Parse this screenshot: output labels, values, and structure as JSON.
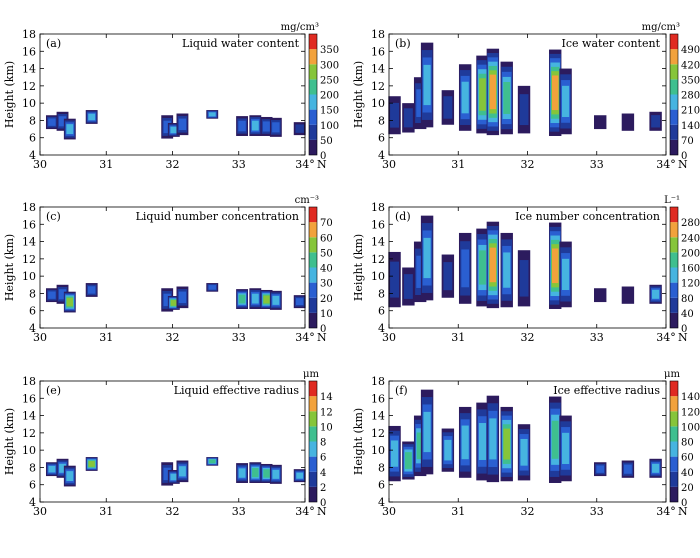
{
  "figure": {
    "x_unit_suffix": "N",
    "xlabel_short": "N",
    "degree_symbol": "°"
  },
  "chart_data": [
    {
      "type": "heatmap",
      "panel_label": "(a)",
      "title": "Liquid water content",
      "ylabel": "Height (km)",
      "xlabel": "°N",
      "x_ticks": [
        30,
        31,
        32,
        33,
        34
      ],
      "y_ticks": [
        4,
        6,
        8,
        10,
        12,
        14,
        16,
        18
      ],
      "xlim": [
        30,
        34
      ],
      "ylim": [
        4,
        18
      ],
      "colorbar": {
        "unit": "mg/cm³",
        "ticks": [
          0,
          50,
          100,
          150,
          200,
          250,
          300,
          350
        ],
        "max": 400
      },
      "cells": [
        {
          "x": 30.18,
          "ymin": 7.0,
          "ymax": 8.6,
          "v": 0.35
        },
        {
          "x": 30.34,
          "ymin": 6.8,
          "ymax": 9.0,
          "v": 0.4
        },
        {
          "x": 30.45,
          "ymin": 5.8,
          "ymax": 8.2,
          "v": 0.45
        },
        {
          "x": 30.78,
          "ymin": 7.6,
          "ymax": 9.2,
          "v": 0.5
        },
        {
          "x": 31.92,
          "ymin": 5.9,
          "ymax": 8.6,
          "v": 0.4
        },
        {
          "x": 32.02,
          "ymin": 6.1,
          "ymax": 7.7,
          "v": 0.55
        },
        {
          "x": 32.15,
          "ymin": 6.3,
          "ymax": 8.8,
          "v": 0.35
        },
        {
          "x": 32.6,
          "ymin": 8.2,
          "ymax": 9.2,
          "v": 0.45
        },
        {
          "x": 33.05,
          "ymin": 6.2,
          "ymax": 8.5,
          "v": 0.4
        },
        {
          "x": 33.25,
          "ymin": 6.2,
          "ymax": 8.6,
          "v": 0.45
        },
        {
          "x": 33.42,
          "ymin": 6.2,
          "ymax": 8.4,
          "v": 0.4
        },
        {
          "x": 33.56,
          "ymin": 6.1,
          "ymax": 8.3,
          "v": 0.35
        },
        {
          "x": 33.92,
          "ymin": 6.3,
          "ymax": 7.8,
          "v": 0.3
        }
      ]
    },
    {
      "type": "heatmap",
      "panel_label": "(b)",
      "title": "Ice water content",
      "ylabel": "Height (km)",
      "xlabel": "°N",
      "x_ticks": [
        30,
        31,
        32,
        33,
        34
      ],
      "y_ticks": [
        4,
        6,
        8,
        10,
        12,
        14,
        16,
        18
      ],
      "xlim": [
        30,
        34
      ],
      "ylim": [
        4,
        18
      ],
      "colorbar": {
        "unit": "mg/cm³",
        "ticks": [
          0,
          70,
          140,
          210,
          280,
          350,
          420,
          490
        ],
        "max": 560
      },
      "cells": [
        {
          "x": 30.08,
          "ymin": 6.4,
          "ymax": 10.8,
          "v": 0.2
        },
        {
          "x": 30.28,
          "ymin": 6.6,
          "ymax": 10.0,
          "v": 0.25
        },
        {
          "x": 30.45,
          "ymin": 7.0,
          "ymax": 13.0,
          "v": 0.35
        },
        {
          "x": 30.55,
          "ymin": 7.2,
          "ymax": 17.0,
          "v": 0.45
        },
        {
          "x": 30.85,
          "ymin": 7.5,
          "ymax": 11.5,
          "v": 0.3
        },
        {
          "x": 31.1,
          "ymin": 6.8,
          "ymax": 14.5,
          "v": 0.45
        },
        {
          "x": 31.35,
          "ymin": 6.5,
          "ymax": 15.5,
          "v": 0.75
        },
        {
          "x": 31.5,
          "ymin": 6.3,
          "ymax": 16.3,
          "v": 0.9
        },
        {
          "x": 31.7,
          "ymin": 6.4,
          "ymax": 14.8,
          "v": 0.6
        },
        {
          "x": 31.95,
          "ymin": 6.5,
          "ymax": 12.0,
          "v": 0.3
        },
        {
          "x": 32.4,
          "ymin": 6.2,
          "ymax": 16.2,
          "v": 0.9
        },
        {
          "x": 32.55,
          "ymin": 6.4,
          "ymax": 14.0,
          "v": 0.5
        },
        {
          "x": 33.05,
          "ymin": 7.0,
          "ymax": 8.6,
          "v": 0.15
        },
        {
          "x": 33.45,
          "ymin": 6.8,
          "ymax": 8.8,
          "v": 0.15
        },
        {
          "x": 33.85,
          "ymin": 6.8,
          "ymax": 9.0,
          "v": 0.25
        }
      ]
    },
    {
      "type": "heatmap",
      "panel_label": "(c)",
      "title": "Liquid number concentration",
      "ylabel": "Height (km)",
      "xlabel": "°N",
      "x_ticks": [
        30,
        31,
        32,
        33,
        34
      ],
      "y_ticks": [
        4,
        6,
        8,
        10,
        12,
        14,
        16,
        18
      ],
      "xlim": [
        30,
        34
      ],
      "ylim": [
        4,
        18
      ],
      "colorbar": {
        "unit": "cm⁻³",
        "ticks": [
          0,
          10,
          20,
          30,
          40,
          50,
          60,
          70
        ],
        "max": 80
      },
      "cells": [
        {
          "x": 30.18,
          "ymin": 7.0,
          "ymax": 8.6,
          "v": 0.35
        },
        {
          "x": 30.34,
          "ymin": 6.8,
          "ymax": 9.0,
          "v": 0.4
        },
        {
          "x": 30.45,
          "ymin": 5.8,
          "ymax": 8.2,
          "v": 0.7
        },
        {
          "x": 30.78,
          "ymin": 7.6,
          "ymax": 9.2,
          "v": 0.4
        },
        {
          "x": 31.92,
          "ymin": 5.9,
          "ymax": 8.6,
          "v": 0.4
        },
        {
          "x": 32.02,
          "ymin": 6.1,
          "ymax": 7.7,
          "v": 0.75
        },
        {
          "x": 32.15,
          "ymin": 6.3,
          "ymax": 8.8,
          "v": 0.35
        },
        {
          "x": 32.6,
          "ymin": 8.2,
          "ymax": 9.2,
          "v": 0.4
        },
        {
          "x": 33.05,
          "ymin": 6.2,
          "ymax": 8.5,
          "v": 0.6
        },
        {
          "x": 33.25,
          "ymin": 6.2,
          "ymax": 8.6,
          "v": 0.55
        },
        {
          "x": 33.42,
          "ymin": 6.2,
          "ymax": 8.4,
          "v": 0.8
        },
        {
          "x": 33.56,
          "ymin": 6.1,
          "ymax": 8.3,
          "v": 0.45
        },
        {
          "x": 33.92,
          "ymin": 6.3,
          "ymax": 7.8,
          "v": 0.35
        }
      ]
    },
    {
      "type": "heatmap",
      "panel_label": "(d)",
      "title": "Ice number concentration",
      "ylabel": "Height (km)",
      "xlabel": "°N",
      "x_ticks": [
        30,
        31,
        32,
        33,
        34
      ],
      "y_ticks": [
        4,
        6,
        8,
        10,
        12,
        14,
        16,
        18
      ],
      "xlim": [
        30,
        34
      ],
      "ylim": [
        4,
        18
      ],
      "colorbar": {
        "unit": "L⁻¹",
        "ticks": [
          0,
          40,
          80,
          120,
          160,
          200,
          240,
          280
        ],
        "max": 320
      },
      "cells": [
        {
          "x": 30.08,
          "ymin": 6.4,
          "ymax": 12.8,
          "v": 0.2
        },
        {
          "x": 30.28,
          "ymin": 6.6,
          "ymax": 11.0,
          "v": 0.25
        },
        {
          "x": 30.45,
          "ymin": 7.0,
          "ymax": 14.0,
          "v": 0.35
        },
        {
          "x": 30.55,
          "ymin": 7.2,
          "ymax": 17.0,
          "v": 0.5
        },
        {
          "x": 30.85,
          "ymin": 7.5,
          "ymax": 12.5,
          "v": 0.3
        },
        {
          "x": 31.1,
          "ymin": 6.8,
          "ymax": 15.0,
          "v": 0.4
        },
        {
          "x": 31.35,
          "ymin": 6.5,
          "ymax": 15.5,
          "v": 0.6
        },
        {
          "x": 31.5,
          "ymin": 6.3,
          "ymax": 16.3,
          "v": 0.85
        },
        {
          "x": 31.7,
          "ymin": 6.4,
          "ymax": 15.0,
          "v": 0.55
        },
        {
          "x": 31.95,
          "ymin": 6.5,
          "ymax": 13.0,
          "v": 0.3
        },
        {
          "x": 32.4,
          "ymin": 6.2,
          "ymax": 16.2,
          "v": 0.9
        },
        {
          "x": 32.55,
          "ymin": 6.4,
          "ymax": 14.0,
          "v": 0.45
        },
        {
          "x": 33.05,
          "ymin": 7.0,
          "ymax": 8.6,
          "v": 0.15
        },
        {
          "x": 33.45,
          "ymin": 6.8,
          "ymax": 8.8,
          "v": 0.15
        },
        {
          "x": 33.85,
          "ymin": 6.8,
          "ymax": 9.0,
          "v": 0.45
        }
      ]
    },
    {
      "type": "heatmap",
      "panel_label": "(e)",
      "title": "Liquid effective radius",
      "ylabel": "Height (km)",
      "xlabel": "°N",
      "x_ticks": [
        30,
        31,
        32,
        33,
        34
      ],
      "y_ticks": [
        4,
        6,
        8,
        10,
        12,
        14,
        16,
        18
      ],
      "xlim": [
        30,
        34
      ],
      "ylim": [
        4,
        18
      ],
      "colorbar": {
        "unit": "μm",
        "ticks": [
          0,
          2,
          4,
          6,
          8,
          10,
          12,
          14
        ],
        "max": 16
      },
      "cells": [
        {
          "x": 30.18,
          "ymin": 7.0,
          "ymax": 8.6,
          "v": 0.45
        },
        {
          "x": 30.34,
          "ymin": 6.8,
          "ymax": 9.0,
          "v": 0.5
        },
        {
          "x": 30.45,
          "ymin": 5.8,
          "ymax": 8.2,
          "v": 0.45
        },
        {
          "x": 30.78,
          "ymin": 7.6,
          "ymax": 9.2,
          "v": 0.7
        },
        {
          "x": 31.92,
          "ymin": 5.9,
          "ymax": 8.6,
          "v": 0.4
        },
        {
          "x": 32.02,
          "ymin": 6.1,
          "ymax": 7.7,
          "v": 0.45
        },
        {
          "x": 32.15,
          "ymin": 6.3,
          "ymax": 8.8,
          "v": 0.5
        },
        {
          "x": 32.6,
          "ymin": 8.2,
          "ymax": 9.2,
          "v": 0.65
        },
        {
          "x": 33.05,
          "ymin": 6.2,
          "ymax": 8.5,
          "v": 0.55
        },
        {
          "x": 33.25,
          "ymin": 6.2,
          "ymax": 8.6,
          "v": 0.65
        },
        {
          "x": 33.42,
          "ymin": 6.2,
          "ymax": 8.4,
          "v": 0.6
        },
        {
          "x": 33.56,
          "ymin": 6.1,
          "ymax": 8.3,
          "v": 0.5
        },
        {
          "x": 33.92,
          "ymin": 6.3,
          "ymax": 7.8,
          "v": 0.45
        }
      ]
    },
    {
      "type": "heatmap",
      "panel_label": "(f)",
      "title": "Ice effective radius",
      "ylabel": "Height (km)",
      "xlabel": "°N",
      "x_ticks": [
        30,
        31,
        32,
        33,
        34
      ],
      "y_ticks": [
        4,
        6,
        8,
        10,
        12,
        14,
        16,
        18
      ],
      "xlim": [
        30,
        34
      ],
      "ylim": [
        4,
        18
      ],
      "colorbar": {
        "unit": "μm",
        "ticks": [
          0,
          20,
          40,
          60,
          80,
          100,
          120,
          140
        ],
        "max": 160
      },
      "cells": [
        {
          "x": 30.08,
          "ymin": 6.4,
          "ymax": 12.8,
          "v": 0.55
        },
        {
          "x": 30.28,
          "ymin": 6.6,
          "ymax": 11.0,
          "v": 0.6
        },
        {
          "x": 30.45,
          "ymin": 7.0,
          "ymax": 14.0,
          "v": 0.6
        },
        {
          "x": 30.55,
          "ymin": 7.2,
          "ymax": 17.0,
          "v": 0.5
        },
        {
          "x": 30.85,
          "ymin": 7.5,
          "ymax": 12.5,
          "v": 0.55
        },
        {
          "x": 31.1,
          "ymin": 6.8,
          "ymax": 15.0,
          "v": 0.5
        },
        {
          "x": 31.35,
          "ymin": 6.5,
          "ymax": 15.5,
          "v": 0.55
        },
        {
          "x": 31.5,
          "ymin": 6.3,
          "ymax": 16.3,
          "v": 0.45
        },
        {
          "x": 31.7,
          "ymin": 6.4,
          "ymax": 15.0,
          "v": 0.7
        },
        {
          "x": 31.95,
          "ymin": 6.5,
          "ymax": 13.0,
          "v": 0.55
        },
        {
          "x": 32.4,
          "ymin": 6.2,
          "ymax": 16.2,
          "v": 0.6
        },
        {
          "x": 32.55,
          "ymin": 6.4,
          "ymax": 14.0,
          "v": 0.5
        },
        {
          "x": 33.05,
          "ymin": 7.0,
          "ymax": 8.6,
          "v": 0.4
        },
        {
          "x": 33.45,
          "ymin": 6.8,
          "ymax": 8.8,
          "v": 0.4
        },
        {
          "x": 33.85,
          "ymin": 6.8,
          "ymax": 9.0,
          "v": 0.45
        }
      ]
    }
  ],
  "colors": {
    "colormap": [
      "#2c1b5e",
      "#1f3a9a",
      "#2a5fd1",
      "#46b4e0",
      "#3fbf8f",
      "#86c53a",
      "#f2a23c",
      "#e02b22"
    ]
  }
}
